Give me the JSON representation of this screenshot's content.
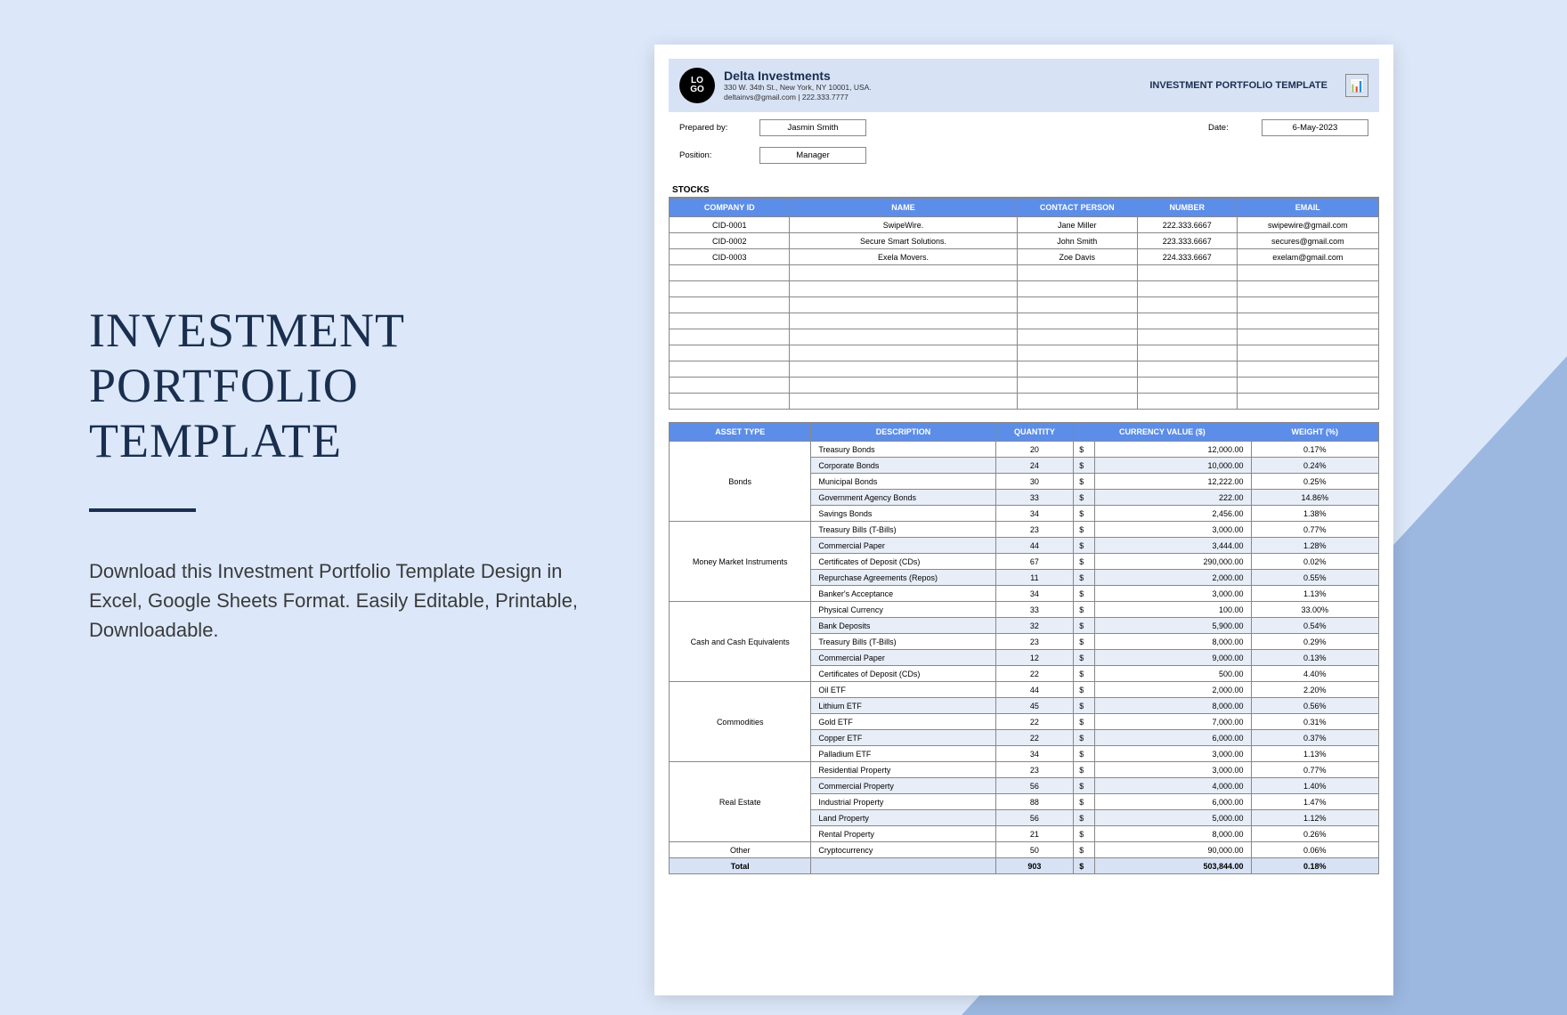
{
  "left": {
    "title_line1": "INVESTMENT",
    "title_line2": "PORTFOLIO TEMPLATE",
    "description": "Download this Investment Portfolio Template Design in Excel, Google Sheets Format. Easily Editable, Printable, Downloadable."
  },
  "header": {
    "logo_text": "LO\nGO",
    "company_name": "Delta Investments",
    "company_addr1": "330 W. 34th St., New York, NY 10001, USA.",
    "company_addr2": "deltainvs@gmail.com | 222.333.7777",
    "template_title": "INVESTMENT PORTFOLIO TEMPLATE"
  },
  "meta": {
    "prepared_by_label": "Prepared by:",
    "prepared_by": "Jasmin Smith",
    "date_label": "Date:",
    "date": "6-May-2023",
    "position_label": "Position:",
    "position": "Manager"
  },
  "stocks": {
    "section": "STOCKS",
    "columns": [
      "COMPANY ID",
      "NAME",
      "CONTACT PERSON",
      "NUMBER",
      "EMAIL"
    ],
    "rows": [
      [
        "CID-0001",
        "SwipeWire.",
        "Jane Miller",
        "222.333.6667",
        "swipewire@gmail.com"
      ],
      [
        "CID-0002",
        "Secure Smart Solutions.",
        "John Smith",
        "223.333.6667",
        "secures@gmail.com"
      ],
      [
        "CID-0003",
        "Exela Movers.",
        "Zoe Davis",
        "224.333.6667",
        "exelam@gmail.com"
      ]
    ],
    "empty_rows": 9,
    "col_widths": [
      "17%",
      "32%",
      "17%",
      "14%",
      "20%"
    ]
  },
  "assets": {
    "columns": [
      "ASSET TYPE",
      "DESCRIPTION",
      "QUANTITY",
      "CURRENCY VALUE ($)",
      "WEIGHT (%)"
    ],
    "col_widths": [
      "20%",
      "26%",
      "11%",
      "3%",
      "22%",
      "18%"
    ],
    "groups": [
      {
        "type": "Bonds",
        "rows": [
          {
            "desc": "Treasury Bonds",
            "qty": "20",
            "val": "12,000.00",
            "wt": "0.17%",
            "alt": false
          },
          {
            "desc": "Corporate Bonds",
            "qty": "24",
            "val": "10,000.00",
            "wt": "0.24%",
            "alt": true
          },
          {
            "desc": "Municipal Bonds",
            "qty": "30",
            "val": "12,222.00",
            "wt": "0.25%",
            "alt": false
          },
          {
            "desc": "Government Agency Bonds",
            "qty": "33",
            "val": "222.00",
            "wt": "14.86%",
            "alt": true
          },
          {
            "desc": "Savings Bonds",
            "qty": "34",
            "val": "2,456.00",
            "wt": "1.38%",
            "alt": false
          }
        ]
      },
      {
        "type": "Money Market Instruments",
        "rows": [
          {
            "desc": "Treasury Bills (T-Bills)",
            "qty": "23",
            "val": "3,000.00",
            "wt": "0.77%",
            "alt": false
          },
          {
            "desc": "Commercial Paper",
            "qty": "44",
            "val": "3,444.00",
            "wt": "1.28%",
            "alt": true
          },
          {
            "desc": "Certificates of Deposit (CDs)",
            "qty": "67",
            "val": "290,000.00",
            "wt": "0.02%",
            "alt": false
          },
          {
            "desc": "Repurchase Agreements (Repos)",
            "qty": "11",
            "val": "2,000.00",
            "wt": "0.55%",
            "alt": true
          },
          {
            "desc": "Banker's Acceptance",
            "qty": "34",
            "val": "3,000.00",
            "wt": "1.13%",
            "alt": false
          }
        ]
      },
      {
        "type": "Cash and Cash Equivalents",
        "rows": [
          {
            "desc": "Physical Currency",
            "qty": "33",
            "val": "100.00",
            "wt": "33.00%",
            "alt": false
          },
          {
            "desc": "Bank Deposits",
            "qty": "32",
            "val": "5,900.00",
            "wt": "0.54%",
            "alt": true
          },
          {
            "desc": "Treasury Bills (T-Bills)",
            "qty": "23",
            "val": "8,000.00",
            "wt": "0.29%",
            "alt": false
          },
          {
            "desc": "Commercial Paper",
            "qty": "12",
            "val": "9,000.00",
            "wt": "0.13%",
            "alt": true
          },
          {
            "desc": "Certificates of Deposit (CDs)",
            "qty": "22",
            "val": "500.00",
            "wt": "4.40%",
            "alt": false
          }
        ]
      },
      {
        "type": "Commodities",
        "rows": [
          {
            "desc": "Oil ETF",
            "qty": "44",
            "val": "2,000.00",
            "wt": "2.20%",
            "alt": false
          },
          {
            "desc": "Lithium ETF",
            "qty": "45",
            "val": "8,000.00",
            "wt": "0.56%",
            "alt": true
          },
          {
            "desc": "Gold ETF",
            "qty": "22",
            "val": "7,000.00",
            "wt": "0.31%",
            "alt": false
          },
          {
            "desc": "Copper ETF",
            "qty": "22",
            "val": "6,000.00",
            "wt": "0.37%",
            "alt": true
          },
          {
            "desc": "Palladium ETF",
            "qty": "34",
            "val": "3,000.00",
            "wt": "1.13%",
            "alt": false
          }
        ]
      },
      {
        "type": "Real Estate",
        "rows": [
          {
            "desc": "Residential Property",
            "qty": "23",
            "val": "3,000.00",
            "wt": "0.77%",
            "alt": false
          },
          {
            "desc": "Commercial Property",
            "qty": "56",
            "val": "4,000.00",
            "wt": "1.40%",
            "alt": true
          },
          {
            "desc": "Industrial Property",
            "qty": "88",
            "val": "6,000.00",
            "wt": "1.47%",
            "alt": false
          },
          {
            "desc": "Land Property",
            "qty": "56",
            "val": "5,000.00",
            "wt": "1.12%",
            "alt": true
          },
          {
            "desc": "Rental Property",
            "qty": "21",
            "val": "8,000.00",
            "wt": "0.26%",
            "alt": false
          }
        ]
      },
      {
        "type": "Other",
        "rows": [
          {
            "desc": "Cryptocurrency",
            "qty": "50",
            "val": "90,000.00",
            "wt": "0.06%",
            "alt": false
          }
        ]
      }
    ],
    "total": {
      "label": "Total",
      "qty": "903",
      "val": "503,844.00",
      "wt": "0.18%"
    }
  },
  "colors": {
    "page_bg": "#dce8f9",
    "triangle": "#9cb8e0",
    "header_bg": "#d7e2f5",
    "th_bg": "#5c8de8",
    "alt_row": "#e8eef7",
    "title_color": "#1a2f4f"
  }
}
